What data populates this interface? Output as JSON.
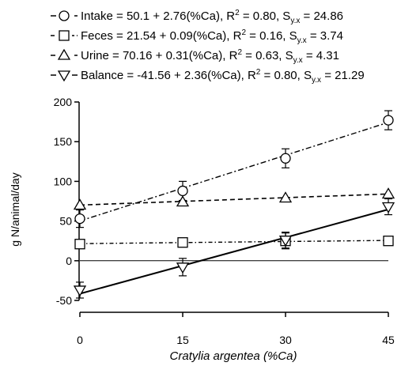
{
  "chart_data": {
    "type": "scatter",
    "title": "",
    "xlabel": "Cratylia argentea (%Ca)",
    "ylabel": "g N/animal/day",
    "x": [
      0,
      15,
      30,
      45
    ],
    "xlim": [
      0,
      45
    ],
    "ylim": [
      -50,
      200
    ],
    "xticks": [
      0,
      15,
      30,
      45
    ],
    "yticks": [
      -50,
      0,
      50,
      100,
      150,
      200
    ],
    "grid": false,
    "legend_position": "top",
    "reference_line_y": 0,
    "series": [
      {
        "name": "Intake",
        "equation": "Intake = 50.1 + 2.76(%Ca), R",
        "r2_exponent": "2",
        "r2_value": " = 0.80, S",
        "syx_subscript": "y.x",
        "syx_value": " = 24.86",
        "marker": "circle",
        "line_style": "dash-dot",
        "intercept": 50.1,
        "slope": 2.76,
        "values": [
          53,
          88,
          129,
          177
        ],
        "errors": [
          11,
          12,
          12,
          12
        ]
      },
      {
        "name": "Feces",
        "equation": "Feces = 21.54 + 0.09(%Ca), R",
        "r2_exponent": "2",
        "r2_value": " = 0.16, S",
        "syx_subscript": "y.x",
        "syx_value": " = 3.74",
        "marker": "square",
        "line_style": "dash-dot-fine",
        "intercept": 21.54,
        "slope": 0.09,
        "values": [
          21,
          23,
          25,
          25
        ],
        "errors": [
          0,
          0,
          10,
          0
        ]
      },
      {
        "name": "Urine",
        "equation": "Urine = 70.16 + 0.31(%Ca), R",
        "r2_exponent": "2",
        "r2_value": " = 0.63, S",
        "syx_subscript": "y.x",
        "syx_value": " = 4.31",
        "marker": "triangle-up",
        "line_style": "dashed",
        "intercept": 70.16,
        "slope": 0.31,
        "values": [
          70,
          74,
          79,
          84
        ],
        "errors": [
          0,
          0,
          0,
          0
        ]
      },
      {
        "name": "Balance",
        "equation": "Balance = -41.56 + 2.36(%Ca), R",
        "r2_exponent": "2",
        "r2_value": " = 0.80, S",
        "syx_subscript": "y.x",
        "syx_value": " = 21.29",
        "marker": "triangle-down",
        "line_style": "solid",
        "intercept": -41.56,
        "slope": 2.36,
        "values": [
          -37,
          -8,
          26,
          68
        ],
        "errors": [
          10,
          11,
          10,
          10
        ]
      }
    ]
  }
}
